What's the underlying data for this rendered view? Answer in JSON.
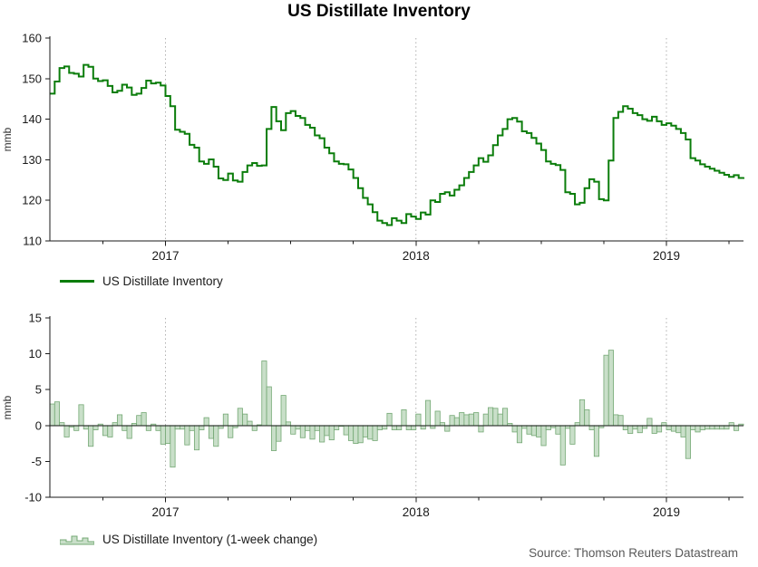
{
  "title": "US Distillate Inventory",
  "source": "Source: Thomson Reuters Datastream",
  "legends": {
    "top": "US Distillate Inventory",
    "bottom": "US Distillate Inventory (1-week change)"
  },
  "colors": {
    "line": "#0b7d0b",
    "bar_fill": "#c9dfc9",
    "bar_edge": "#74a874",
    "axis": "#1a1a1a",
    "grid_dotted": "#b0b0b0",
    "tick_text": "#1a1a1a",
    "ylabel_text": "#333333"
  },
  "chart_data": [
    {
      "type": "line",
      "line_style": "step",
      "name": "US Distillate Inventory",
      "ylabel": "mmb",
      "ylim": [
        110,
        160
      ],
      "yticks": [
        110,
        120,
        130,
        140,
        150,
        160
      ],
      "x_axis": {
        "span_weeks": 144,
        "year_ticks": [
          {
            "label": "2017",
            "week": 24
          },
          {
            "label": "2018",
            "week": 76
          },
          {
            "label": "2019",
            "week": 128
          }
        ],
        "minor_tick_weeks": [
          11,
          24,
          37,
          50,
          63,
          76,
          89,
          102,
          115,
          128,
          141
        ]
      },
      "series": [
        {
          "name": "US Distillate Inventory",
          "values": [
            146.3,
            149.3,
            152.6,
            153.0,
            151.4,
            151.2,
            150.5,
            153.4,
            152.9,
            150.0,
            149.4,
            149.6,
            148.2,
            146.6,
            147.0,
            148.5,
            147.8,
            146.0,
            146.3,
            147.7,
            149.5,
            148.8,
            149.0,
            148.3,
            145.7,
            143.2,
            137.4,
            136.9,
            136.4,
            133.7,
            133.0,
            129.6,
            129.0,
            130.1,
            128.3,
            125.4,
            125.0,
            126.6,
            124.9,
            124.6,
            127.0,
            128.6,
            129.2,
            128.5,
            128.6,
            137.6,
            143.0,
            139.5,
            137.3,
            141.5,
            142.0,
            140.8,
            140.3,
            138.6,
            137.9,
            136.0,
            135.3,
            133.0,
            131.6,
            129.6,
            129.0,
            128.9,
            127.6,
            125.5,
            123.0,
            120.6,
            119.0,
            117.1,
            115.0,
            114.4,
            113.9,
            115.6,
            115.0,
            114.4,
            116.6,
            116.0,
            115.4,
            117.0,
            116.5,
            120.0,
            119.6,
            121.6,
            122.0,
            121.2,
            122.6,
            123.7,
            125.5,
            127.0,
            128.6,
            130.4,
            129.5,
            131.1,
            133.6,
            136.0,
            137.6,
            140.0,
            140.3,
            139.4,
            137.0,
            136.6,
            135.4,
            134.0,
            132.4,
            129.6,
            129.0,
            128.7,
            127.5,
            122.0,
            121.6,
            119.0,
            119.4,
            123.0,
            125.2,
            124.6,
            120.3,
            120.0,
            129.8,
            140.3,
            141.8,
            143.2,
            142.6,
            141.5,
            141.0,
            140.0,
            139.6,
            140.6,
            139.5,
            138.6,
            139.0,
            138.4,
            137.6,
            136.6,
            135.0,
            130.4,
            129.8,
            128.9,
            128.3,
            127.8,
            127.3,
            126.8,
            126.3,
            125.8,
            126.2,
            125.5,
            125.7
          ]
        }
      ]
    },
    {
      "type": "bar",
      "name": "US Distillate Inventory (1-week change)",
      "ylabel": "mmb",
      "ylim": [
        -10,
        15
      ],
      "yticks": [
        -10,
        -5,
        0,
        5,
        10,
        15
      ],
      "zero_line": true,
      "x_axis": {
        "span_weeks": 144,
        "year_ticks": [
          {
            "label": "2017",
            "week": 24
          },
          {
            "label": "2018",
            "week": 76
          },
          {
            "label": "2019",
            "week": 128
          }
        ],
        "minor_tick_weeks": [
          11,
          24,
          37,
          50,
          63,
          76,
          89,
          102,
          115,
          128,
          141
        ]
      },
      "series": [
        {
          "name": "US Distillate Inventory (1-week change)",
          "values": [
            3.0,
            3.3,
            0.4,
            -1.6,
            -0.2,
            -0.7,
            2.9,
            -0.5,
            -2.9,
            -0.6,
            0.2,
            -1.4,
            -1.6,
            0.4,
            1.5,
            -0.7,
            -1.8,
            0.3,
            1.4,
            1.8,
            -0.7,
            0.2,
            -0.7,
            -2.6,
            -2.5,
            -5.8,
            -0.5,
            -0.5,
            -2.7,
            -0.7,
            -3.4,
            -0.6,
            1.1,
            -1.8,
            -2.9,
            -0.4,
            1.6,
            -1.7,
            -0.3,
            2.4,
            1.6,
            0.6,
            -0.7,
            0.1,
            9.0,
            5.4,
            -3.5,
            -2.2,
            4.2,
            0.5,
            -1.2,
            -0.5,
            -1.7,
            -0.7,
            -1.9,
            -0.7,
            -2.3,
            -1.4,
            -2.0,
            -0.6,
            -0.1,
            -1.3,
            -2.1,
            -2.5,
            -2.4,
            -1.6,
            -1.9,
            -2.1,
            -0.6,
            -0.5,
            1.7,
            -0.6,
            -0.6,
            2.2,
            -0.6,
            -0.6,
            1.6,
            -0.5,
            3.5,
            -0.4,
            2.0,
            0.4,
            -0.8,
            1.4,
            1.1,
            1.8,
            1.5,
            1.6,
            1.8,
            -0.9,
            1.6,
            2.5,
            2.4,
            1.6,
            2.4,
            0.3,
            -0.9,
            -2.4,
            -0.4,
            -1.2,
            -1.4,
            -1.6,
            -2.8,
            -0.6,
            -0.3,
            -1.2,
            -5.5,
            -0.4,
            -2.6,
            0.4,
            3.6,
            2.2,
            -0.6,
            -4.3,
            -0.3,
            9.8,
            10.5,
            1.5,
            1.4,
            -0.6,
            -1.1,
            -0.5,
            -1.0,
            -0.4,
            1.0,
            -1.1,
            -0.9,
            0.4,
            -0.6,
            -0.8,
            -1.0,
            -1.6,
            -4.6,
            -0.6,
            -0.9,
            -0.6,
            -0.5,
            -0.5,
            -0.5,
            -0.5,
            -0.5,
            0.4,
            -0.7,
            0.2
          ]
        }
      ]
    }
  ]
}
